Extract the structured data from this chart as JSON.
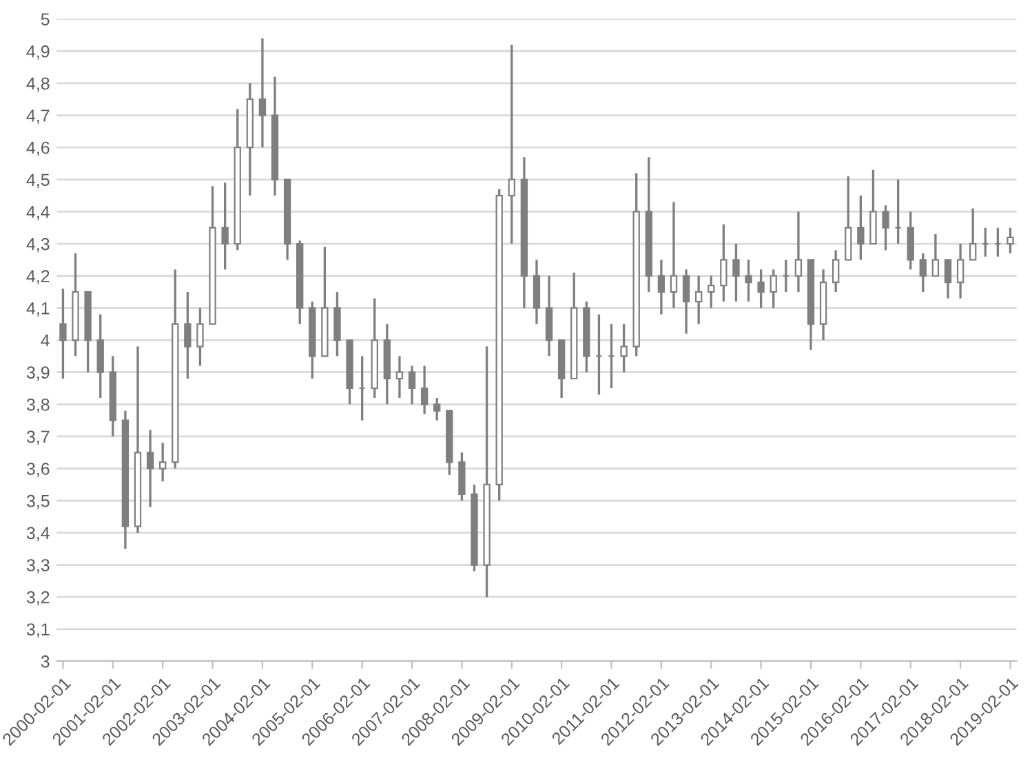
{
  "chart_data": {
    "type": "candlestick",
    "color": "#7f7f7f",
    "categories": [
      "2000-02-01",
      null,
      null,
      null,
      "2001-02-01",
      null,
      null,
      null,
      "2002-02-01",
      null,
      null,
      null,
      "2003-02-01",
      null,
      null,
      null,
      "2004-02-01",
      null,
      null,
      null,
      "2005-02-01",
      null,
      null,
      null,
      "2006-02-01",
      null,
      null,
      null,
      "2007-02-01",
      null,
      null,
      null,
      "2008-02-01",
      null,
      null,
      null,
      "2009-02-01",
      null,
      null,
      null,
      "2010-02-01",
      null,
      null,
      null,
      "2011-02-01",
      null,
      null,
      null,
      "2012-02-01",
      null,
      null,
      null,
      "2013-02-01",
      null,
      null,
      null,
      "2014-02-01",
      null,
      null,
      null,
      "2015-02-01",
      null,
      null,
      null,
      "2016-02-01",
      null,
      null,
      null,
      "2017-02-01",
      null,
      null,
      null,
      "2018-02-01",
      null,
      null,
      null,
      "2019-02-01"
    ],
    "ohlc": [
      [
        4.05,
        4.16,
        3.88,
        4.0
      ],
      [
        4.0,
        4.27,
        3.95,
        4.15
      ],
      [
        4.15,
        4.15,
        3.9,
        4.0
      ],
      [
        4.0,
        4.08,
        3.82,
        3.9
      ],
      [
        3.9,
        3.95,
        3.7,
        3.75
      ],
      [
        3.75,
        3.78,
        3.35,
        3.42
      ],
      [
        3.42,
        3.98,
        3.4,
        3.65
      ],
      [
        3.65,
        3.72,
        3.48,
        3.6
      ],
      [
        3.6,
        3.68,
        3.56,
        3.62
      ],
      [
        3.62,
        4.22,
        3.6,
        4.05
      ],
      [
        4.05,
        4.15,
        3.88,
        3.98
      ],
      [
        3.98,
        4.1,
        3.92,
        4.05
      ],
      [
        4.05,
        4.48,
        4.05,
        4.35
      ],
      [
        4.35,
        4.49,
        4.22,
        4.3
      ],
      [
        4.3,
        4.72,
        4.28,
        4.6
      ],
      [
        4.6,
        4.8,
        4.45,
        4.75
      ],
      [
        4.75,
        4.94,
        4.6,
        4.7
      ],
      [
        4.7,
        4.82,
        4.45,
        4.5
      ],
      [
        4.5,
        4.5,
        4.25,
        4.3
      ],
      [
        4.3,
        4.31,
        4.05,
        4.1
      ],
      [
        4.1,
        4.12,
        3.88,
        3.95
      ],
      [
        3.95,
        4.29,
        3.95,
        4.1
      ],
      [
        4.1,
        4.15,
        3.95,
        4.0
      ],
      [
        4.0,
        4.0,
        3.8,
        3.85
      ],
      [
        3.85,
        3.95,
        3.75,
        3.85
      ],
      [
        3.85,
        4.13,
        3.82,
        4.0
      ],
      [
        4.0,
        4.05,
        3.8,
        3.88
      ],
      [
        3.88,
        3.95,
        3.82,
        3.9
      ],
      [
        3.9,
        3.92,
        3.8,
        3.85
      ],
      [
        3.85,
        3.92,
        3.77,
        3.8
      ],
      [
        3.8,
        3.82,
        3.75,
        3.78
      ],
      [
        3.78,
        3.78,
        3.58,
        3.62
      ],
      [
        3.62,
        3.65,
        3.5,
        3.52
      ],
      [
        3.52,
        3.55,
        3.28,
        3.3
      ],
      [
        3.3,
        3.98,
        3.2,
        3.55
      ],
      [
        3.55,
        4.47,
        3.5,
        4.45
      ],
      [
        4.45,
        4.92,
        4.3,
        4.5
      ],
      [
        4.5,
        4.57,
        4.1,
        4.2
      ],
      [
        4.2,
        4.25,
        4.05,
        4.1
      ],
      [
        4.1,
        4.2,
        3.95,
        4.0
      ],
      [
        4.0,
        4.0,
        3.82,
        3.88
      ],
      [
        3.88,
        4.21,
        3.88,
        4.1
      ],
      [
        4.1,
        4.12,
        3.9,
        3.95
      ],
      [
        3.95,
        4.08,
        3.83,
        3.95
      ],
      [
        3.95,
        4.05,
        3.85,
        3.95
      ],
      [
        3.95,
        4.05,
        3.9,
        3.98
      ],
      [
        3.98,
        4.52,
        3.95,
        4.4
      ],
      [
        4.4,
        4.57,
        4.15,
        4.2
      ],
      [
        4.2,
        4.25,
        4.08,
        4.15
      ],
      [
        4.15,
        4.43,
        4.1,
        4.2
      ],
      [
        4.2,
        4.22,
        4.02,
        4.12
      ],
      [
        4.12,
        4.2,
        4.05,
        4.15
      ],
      [
        4.15,
        4.2,
        4.1,
        4.17
      ],
      [
        4.17,
        4.36,
        4.12,
        4.25
      ],
      [
        4.25,
        4.3,
        4.12,
        4.2
      ],
      [
        4.2,
        4.25,
        4.12,
        4.18
      ],
      [
        4.18,
        4.22,
        4.1,
        4.15
      ],
      [
        4.15,
        4.22,
        4.1,
        4.2
      ],
      [
        4.2,
        4.25,
        4.15,
        4.2
      ],
      [
        4.2,
        4.4,
        4.15,
        4.25
      ],
      [
        4.25,
        4.25,
        3.97,
        4.05
      ],
      [
        4.05,
        4.22,
        4.0,
        4.18
      ],
      [
        4.18,
        4.28,
        4.15,
        4.25
      ],
      [
        4.25,
        4.51,
        4.25,
        4.35
      ],
      [
        4.35,
        4.45,
        4.25,
        4.3
      ],
      [
        4.3,
        4.53,
        4.3,
        4.4
      ],
      [
        4.4,
        4.42,
        4.28,
        4.35
      ],
      [
        4.35,
        4.5,
        4.3,
        4.35
      ],
      [
        4.35,
        4.4,
        4.22,
        4.25
      ],
      [
        4.25,
        4.27,
        4.15,
        4.2
      ],
      [
        4.2,
        4.33,
        4.2,
        4.25
      ],
      [
        4.25,
        4.25,
        4.13,
        4.18
      ],
      [
        4.18,
        4.3,
        4.13,
        4.25
      ],
      [
        4.25,
        4.41,
        4.25,
        4.3
      ],
      [
        4.3,
        4.35,
        4.26,
        4.3
      ],
      [
        4.3,
        4.35,
        4.26,
        4.3
      ],
      [
        4.3,
        4.35,
        4.27,
        4.32
      ]
    ],
    "ylim": [
      3,
      5
    ],
    "yticks": [
      3,
      {
        "value": 3.1,
        "label": "3,1"
      },
      {
        "value": 3.2,
        "label": "3,2"
      },
      {
        "value": 3.3,
        "label": "3,3"
      },
      {
        "value": 3.4,
        "label": "3,4"
      },
      {
        "value": 3.5,
        "label": "3,5"
      },
      {
        "value": 3.6,
        "label": "3,6"
      },
      {
        "value": 3.7,
        "label": "3,7"
      },
      {
        "value": 3.8,
        "label": "3,8"
      },
      {
        "value": 3.9,
        "label": "3,9"
      },
      4,
      {
        "value": 4.1,
        "label": "4,1"
      },
      {
        "value": 4.2,
        "label": "4,2"
      },
      {
        "value": 4.3,
        "label": "4,3"
      },
      {
        "value": 4.4,
        "label": "4,4"
      },
      {
        "value": 4.5,
        "label": "4,5"
      },
      {
        "value": 4.6,
        "label": "4,6"
      },
      {
        "value": 4.7,
        "label": "4,7"
      },
      {
        "value": 4.8,
        "label": "4,8"
      },
      {
        "value": 4.9,
        "label": "4,9"
      },
      5
    ],
    "grid": "y",
    "legend": false
  }
}
